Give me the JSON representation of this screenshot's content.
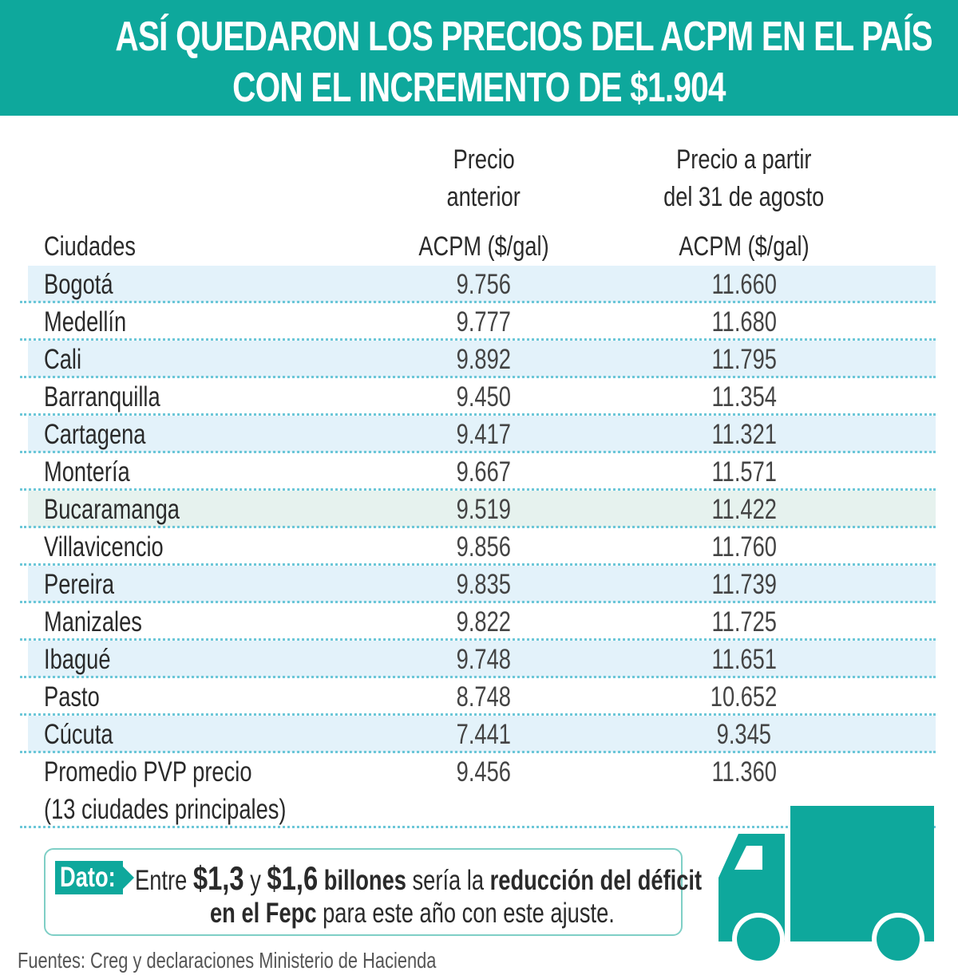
{
  "title": {
    "line1": "ASÍ QUEDARON LOS PRECIOS DEL ACPM EN EL PAÍS",
    "line2": "CON EL INCREMENTO DE $1.904"
  },
  "colors": {
    "accent": "#0ea89c",
    "row_shade": "#e3f2fa",
    "dotted_line": "#6cc7d8"
  },
  "chart_data": {
    "type": "table",
    "columns": {
      "city": "Ciudades",
      "previous_l1": "Precio",
      "previous_l2": "anterior",
      "previous_l3": "ACPM ($/gal)",
      "new_l1": "Precio a partir",
      "new_l2": "del 31 de agosto",
      "new_l3": "ACPM ($/gal)"
    },
    "rows": [
      {
        "city": "Bogotá",
        "previous": "9.756",
        "new": "11.660"
      },
      {
        "city": "Medellín",
        "previous": "9.777",
        "new": "11.680"
      },
      {
        "city": "Cali",
        "previous": "9.892",
        "new": "11.795"
      },
      {
        "city": "Barranquilla",
        "previous": "9.450",
        "new": "11.354"
      },
      {
        "city": "Cartagena",
        "previous": "9.417",
        "new": "11.321"
      },
      {
        "city": "Montería",
        "previous": "9.667",
        "new": "11.571"
      },
      {
        "city": "Bucaramanga",
        "previous": "9.519",
        "new": "11.422"
      },
      {
        "city": "Villavicencio",
        "previous": "9.856",
        "new": "11.760"
      },
      {
        "city": "Pereira",
        "previous": "9.835",
        "new": "11.739"
      },
      {
        "city": "Manizales",
        "previous": "9.822",
        "new": "11.725"
      },
      {
        "city": "Ibagué",
        "previous": "9.748",
        "new": "11.651"
      },
      {
        "city": "Pasto",
        "previous": "8.748",
        "new": "10.652"
      },
      {
        "city": "Cúcuta",
        "previous": "7.441",
        "new": "9.345"
      }
    ],
    "average": {
      "label": "Promedio PVP precio",
      "sublabel": "(13 ciudades principales)",
      "previous": "9.456",
      "new": "11.360"
    }
  },
  "dato": {
    "tag": "Dato:",
    "t1": "Entre ",
    "t2": "$1,3",
    "t3": " y ",
    "t4": "$1,6",
    "t5": " billones",
    "t6": " sería la ",
    "t7": "reducción del déficit",
    "t8": "en el Fepc",
    "t9": " para este año con este ajuste."
  },
  "source": "Fuentes: Creg y declaraciones Ministerio de Hacienda",
  "icon": "truck-icon"
}
